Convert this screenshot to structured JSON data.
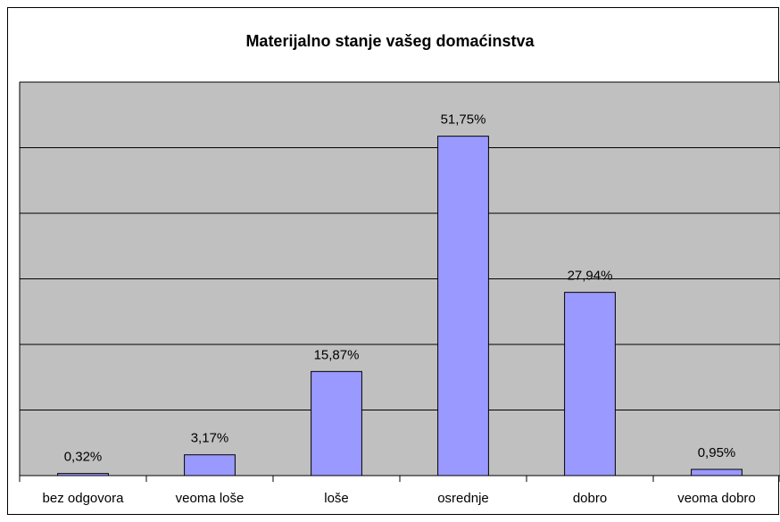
{
  "chart_data": {
    "type": "bar",
    "title": "Materijalno stanje vašeg domaćinstva",
    "categories": [
      "bez odgovora",
      "veoma loše",
      "loše",
      "osrednje",
      "dobro",
      "veoma dobro"
    ],
    "values": [
      0.32,
      3.17,
      15.87,
      51.75,
      27.94,
      0.95
    ],
    "value_labels": [
      "0,32%",
      "3,17%",
      "15,87%",
      "51,75%",
      "27,94%",
      "0,95%"
    ],
    "color": "#9999ff",
    "plot_background": "#c0c0c0",
    "ylim": [
      0,
      60
    ],
    "yticks": [
      0,
      10,
      20,
      30,
      40,
      50,
      60
    ],
    "grid": true
  }
}
